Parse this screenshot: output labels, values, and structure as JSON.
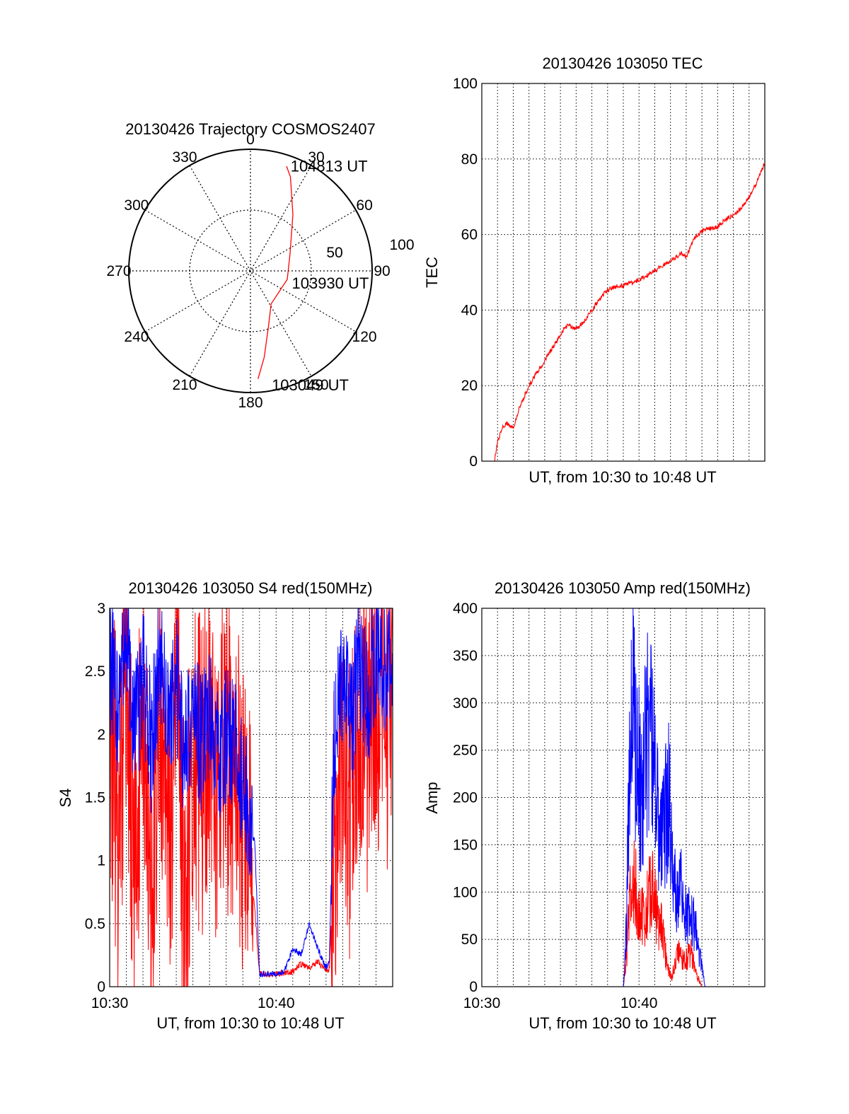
{
  "chart_data": [
    {
      "id": "trajectory",
      "type": "polar",
      "title": "20130426 Trajectory COSMOS2407",
      "azimuth_labels": [
        "0",
        "30",
        "60",
        "90",
        "120",
        "150",
        "180",
        "210",
        "240",
        "270",
        "300",
        "330"
      ],
      "radius_labels": [
        "50",
        "100"
      ],
      "rlim": [
        0,
        100
      ],
      "grid": true,
      "series": [
        {
          "color": "#ff0000",
          "points": [
            {
              "az": 176,
              "r": 89
            },
            {
              "az": 171,
              "r": 72
            },
            {
              "az": 162,
              "r": 48
            },
            {
              "az": 148,
              "r": 32
            },
            {
              "az": 103,
              "r": 31
            },
            {
              "az": 68,
              "r": 35
            },
            {
              "az": 37,
              "r": 58
            },
            {
              "az": 23,
              "r": 84
            },
            {
              "az": 19,
              "r": 91
            }
          ]
        }
      ],
      "annotations": [
        {
          "text": "104813 UT",
          "az": 20,
          "r": 93
        },
        {
          "text": "103930 UT",
          "az": 105,
          "r": 34
        },
        {
          "text": "103049 UT",
          "az": 170,
          "r": 94
        }
      ]
    },
    {
      "id": "tec",
      "type": "line",
      "title": "20130426 103050 TEC",
      "xlabel": "UT, from 10:30 to 10:48 UT",
      "ylabel": "TEC",
      "xlim": [
        0,
        18
      ],
      "ylim": [
        0,
        100
      ],
      "yticks": [
        "0",
        "20",
        "40",
        "60",
        "80",
        "100"
      ],
      "grid": true,
      "series": [
        {
          "color": "#ff0000",
          "x": [
            0.8,
            1.0,
            1.3,
            1.6,
            2.0,
            2.4,
            3.0,
            3.6,
            4.2,
            4.8,
            5.2,
            5.5,
            6.0,
            6.5,
            7.0,
            7.5,
            7.9,
            8.3,
            9.0,
            10.0,
            11.0,
            12.0,
            12.7,
            13.0,
            13.5,
            14.0,
            14.5,
            15.0,
            15.5,
            16.0,
            16.5,
            17.0,
            17.5,
            18.0
          ],
          "y": [
            0,
            5,
            9,
            10,
            9,
            14,
            20,
            24,
            28,
            32,
            35,
            36,
            35,
            37,
            40,
            43,
            45,
            46,
            46.5,
            48,
            50.5,
            53,
            55,
            54,
            59,
            61,
            61.5,
            62,
            64,
            65,
            67,
            70,
            74,
            79
          ]
        }
      ]
    },
    {
      "id": "s4",
      "type": "line",
      "title": "20130426 103050 S4 red(150MHz)",
      "xlabel": "UT, from 10:30 to 10:48 UT",
      "ylabel": "S4",
      "xlim": [
        0,
        17
      ],
      "ylim": [
        0,
        3
      ],
      "xticks": [
        "10:30",
        "10:40"
      ],
      "yticks": [
        "0",
        "0.5",
        "1",
        "1.5",
        "2",
        "2.5",
        "3"
      ],
      "grid": true,
      "series": [
        {
          "color": "#ff0000",
          "x": [
            0,
            0.5,
            1,
            1.5,
            2,
            2.5,
            3,
            3.5,
            4,
            4.5,
            5,
            5.5,
            6,
            6.5,
            7,
            7.5,
            8,
            8.3,
            8.5,
            8.7,
            9,
            10,
            11,
            11.5,
            12,
            12.5,
            13,
            13.2,
            13.5,
            14,
            14.5,
            15,
            15.5,
            16,
            16.5,
            17
          ],
          "y": [
            2.2,
            1.2,
            2.6,
            0.8,
            2.4,
            0.6,
            2.5,
            0.9,
            2.3,
            0.5,
            2.0,
            1.6,
            2.1,
            1.5,
            1.9,
            1.7,
            1.4,
            1.3,
            0.8,
            0.65,
            0.1,
            0.1,
            0.12,
            0.18,
            0.15,
            0.2,
            0.12,
            0.15,
            1.2,
            1.6,
            1.4,
            2.2,
            1.8,
            2.4,
            2.0,
            2.6
          ]
        },
        {
          "color": "#0000ff",
          "x": [
            0,
            0.5,
            1,
            1.5,
            2,
            2.5,
            3,
            3.5,
            4,
            4.5,
            5,
            5.5,
            6,
            6.5,
            7,
            7.5,
            8,
            8.3,
            8.5,
            8.7,
            9,
            10,
            10.5,
            11,
            11.5,
            12,
            12.5,
            13,
            13.2,
            13.5,
            14,
            14.5,
            15,
            15.5,
            16,
            16.5,
            17
          ],
          "y": [
            2.6,
            2.2,
            2.7,
            2.0,
            2.5,
            1.9,
            2.6,
            2.2,
            2.4,
            1.8,
            2.3,
            1.9,
            2.2,
            1.8,
            2.0,
            1.9,
            1.6,
            1.5,
            1.1,
            1.2,
            0.1,
            0.1,
            0.12,
            0.3,
            0.25,
            0.5,
            0.3,
            0.15,
            0.2,
            2.0,
            2.4,
            2.1,
            2.6,
            2.3,
            2.7,
            2.5,
            2.6
          ]
        }
      ]
    },
    {
      "id": "amp",
      "type": "line",
      "title": "20130426 103050 Amp red(150MHz)",
      "xlabel": "UT, from 10:30 to 10:48 UT",
      "ylabel": "Amp",
      "xlim": [
        0,
        18
      ],
      "ylim": [
        0,
        400
      ],
      "xticks": [
        "10:30",
        "10:40"
      ],
      "yticks": [
        "0",
        "50",
        "100",
        "150",
        "200",
        "250",
        "300",
        "350",
        "400"
      ],
      "grid": true,
      "series": [
        {
          "color": "#ff0000",
          "x": [
            0,
            9.0,
            9.2,
            9.4,
            9.7,
            10.0,
            10.3,
            10.6,
            10.9,
            11.2,
            11.5,
            11.8,
            12.1,
            12.4,
            12.7,
            13.0,
            13.3,
            13.6,
            14.0,
            18.0
          ],
          "y": [
            0,
            0,
            30,
            90,
            110,
            80,
            70,
            95,
            100,
            70,
            60,
            20,
            10,
            40,
            30,
            30,
            35,
            15,
            0,
            0
          ]
        },
        {
          "color": "#0000ff",
          "x": [
            0,
            9.0,
            9.2,
            9.4,
            9.6,
            9.9,
            10.2,
            10.4,
            10.7,
            11.0,
            11.3,
            11.6,
            11.9,
            12.1,
            12.4,
            12.7,
            13.0,
            13.3,
            13.6,
            13.9,
            14.2,
            18.0
          ],
          "y": [
            0,
            0,
            60,
            250,
            290,
            230,
            200,
            250,
            300,
            220,
            150,
            170,
            200,
            140,
            90,
            110,
            70,
            80,
            60,
            30,
            0,
            0
          ]
        }
      ]
    }
  ]
}
